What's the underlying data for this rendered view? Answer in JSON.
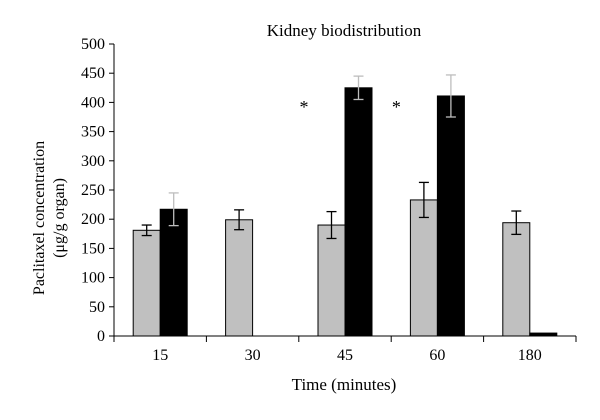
{
  "chart_data": {
    "type": "bar",
    "title": "Kidney biodistribution",
    "xlabel": "Time (minutes)",
    "ylabel_line1": "Paclitaxel concentration",
    "ylabel_line2": "(μg/g organ)",
    "ylim": [
      0,
      500
    ],
    "yticks": [
      0,
      50,
      100,
      150,
      200,
      250,
      300,
      350,
      400,
      450,
      500
    ],
    "grid": false,
    "legend": "none",
    "categories": [
      "15",
      "30",
      "45",
      "60",
      "180"
    ],
    "series": [
      {
        "color": "#c0c0c0",
        "values": [
          181,
          199,
          190,
          233,
          194
        ],
        "err_low": [
          9,
          17,
          23,
          30,
          20
        ],
        "err_high": [
          9,
          17,
          23,
          30,
          20
        ],
        "err_color": "#000000"
      },
      {
        "color": "#000000",
        "values": [
          217,
          null,
          425,
          411,
          5
        ],
        "err_low": [
          28,
          0,
          20,
          36,
          0
        ],
        "err_high": [
          28,
          0,
          20,
          36,
          0
        ],
        "err_color": "#bdbdbd"
      }
    ],
    "annotations": [
      {
        "text": "*",
        "category_index": 2
      },
      {
        "text": "*",
        "category_index": 3
      }
    ]
  }
}
